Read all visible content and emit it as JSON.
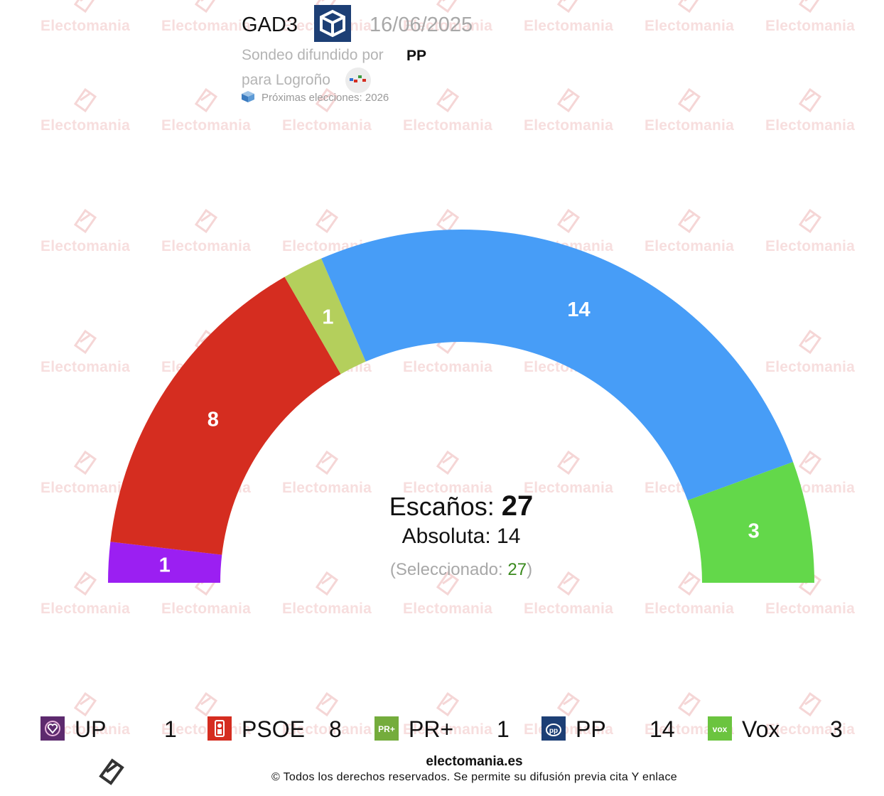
{
  "header": {
    "pollster": "GAD3",
    "date": "16/06/2025",
    "commissioned_label": "Sondeo difundido por",
    "commissioned_by": "PP",
    "scope_label": "para Logroño",
    "next_elections": "Próximas elecciones: 2026"
  },
  "watermark_text": "Electomania",
  "center": {
    "seats_label": "Escaños:",
    "seats_total": "27",
    "majority_label": "Absoluta:",
    "majority_value": "14",
    "selected_open": "(Seleccionado:",
    "selected_value": "27",
    "selected_close": ")"
  },
  "chart_data": {
    "type": "pie",
    "subtype": "hemicycle",
    "total_seats": 27,
    "majority": 14,
    "parties": [
      {
        "name": "UP",
        "seats": 1,
        "color": "#9b1ff2",
        "logo_color": "#5d2a6e"
      },
      {
        "name": "PSOE",
        "seats": 8,
        "color": "#d52d20",
        "logo_color": "#d52d20"
      },
      {
        "name": "PR+",
        "seats": 1,
        "color": "#b4cf5c",
        "logo_color": "#74ac3c"
      },
      {
        "name": "PP",
        "seats": 14,
        "color": "#479df7",
        "logo_color": "#1d3f75"
      },
      {
        "name": "Vox",
        "seats": 3,
        "color": "#63d84a",
        "logo_color": "#6bc43f"
      }
    ]
  },
  "footer": {
    "site": "electomania.es",
    "copyright": "© Todos los derechos reservados. Se permite su difusión previa cita Y enlace"
  }
}
